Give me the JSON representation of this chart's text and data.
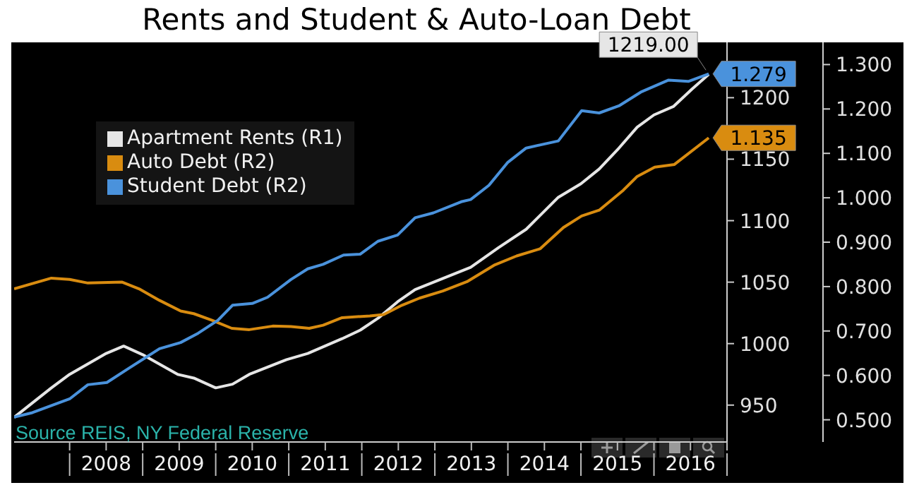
{
  "chart_data": {
    "type": "line",
    "title": "Rents and Student & Auto-Loan Debt",
    "annotations": [
      "Source REIS, NY Federal Reserve"
    ],
    "legend": "top left",
    "grid": false,
    "marker": "none",
    "line_style": "solid",
    "xlim": [
      2007.24,
      2017
    ],
    "xticks": [
      {
        "value": 2008,
        "label": null
      },
      {
        "value": 2008.5,
        "label": "2008"
      },
      {
        "value": 2009,
        "label": null
      },
      {
        "value": 2009.5,
        "label": "2009"
      },
      {
        "value": 2010,
        "label": null
      },
      {
        "value": 2010.5,
        "label": "2010"
      },
      {
        "value": 2011,
        "label": null
      },
      {
        "value": 2011.5,
        "label": "2011"
      },
      {
        "value": 2012,
        "label": null
      },
      {
        "value": 2012.5,
        "label": "2012"
      },
      {
        "value": 2013,
        "label": null
      },
      {
        "value": 2013.5,
        "label": "2013"
      },
      {
        "value": 2014,
        "label": null
      },
      {
        "value": 2014.5,
        "label": "2014"
      },
      {
        "value": 2015,
        "label": null
      },
      {
        "value": 2015.5,
        "label": "2015"
      },
      {
        "value": 2016,
        "label": null
      },
      {
        "value": 2016.5,
        "label": "2016"
      },
      {
        "value": 2017,
        "label": null
      }
    ],
    "ylim": [
      920,
      1245
    ],
    "yticks": [
      950,
      1000,
      1050,
      1100,
      1150,
      1200
    ],
    "y2lim": [
      0.45,
      1.35
    ],
    "y2ticks": [
      {
        "value": 0.5,
        "label": "0.500"
      },
      {
        "value": 0.6,
        "label": "0.600"
      },
      {
        "value": 0.7,
        "label": "0.700"
      },
      {
        "value": 0.8,
        "label": "0.800"
      },
      {
        "value": 0.9,
        "label": "0.900"
      },
      {
        "value": 1.0,
        "label": "1.000"
      },
      {
        "value": 1.1,
        "label": "1.100"
      },
      {
        "value": 1.2,
        "label": "1.200"
      },
      {
        "value": 1.3,
        "label": "1.300"
      }
    ],
    "series": [
      {
        "name": "Apartment Rents (R1)",
        "color": "#e6e6e6",
        "axis": "y",
        "x": [
          2007.24,
          2007.75,
          2008.0,
          2008.5,
          2008.74,
          2009.0,
          2009.48,
          2009.7,
          2010.0,
          2010.23,
          2010.46,
          2010.97,
          2011.26,
          2011.73,
          2011.98,
          2012.23,
          2012.49,
          2012.73,
          2013.11,
          2013.49,
          2013.87,
          2014.25,
          2014.69,
          2015.0,
          2015.25,
          2015.52,
          2015.77,
          2016.0,
          2016.27,
          2016.52,
          2016.75
        ],
        "values": [
          940,
          964,
          975,
          992,
          998,
          991,
          975,
          972,
          964,
          967,
          975,
          987,
          992,
          1004,
          1011,
          1021,
          1034,
          1044,
          1053,
          1062,
          1078,
          1093,
          1119,
          1130,
          1142,
          1159,
          1176,
          1186,
          1193,
          1207,
          1219
        ],
        "value_labels": [
          null,
          null,
          null,
          null,
          null,
          null,
          null,
          null,
          null,
          null,
          null,
          null,
          null,
          null,
          null,
          null,
          null,
          null,
          null,
          null,
          null,
          null,
          null,
          null,
          null,
          null,
          null,
          null,
          null,
          null,
          "1219.00"
        ]
      },
      {
        "name": "Auto Debt (R2)",
        "color": "#d98c10",
        "axis": "y2",
        "x": [
          2007.24,
          2007.75,
          2008.0,
          2008.25,
          2008.72,
          2008.95,
          2009.23,
          2009.52,
          2009.7,
          2009.95,
          2010.22,
          2010.46,
          2010.78,
          2011.03,
          2011.28,
          2011.47,
          2011.73,
          2012.11,
          2012.3,
          2012.55,
          2012.79,
          2013.11,
          2013.44,
          2013.81,
          2014.12,
          2014.44,
          2014.76,
          2015.01,
          2015.25,
          2015.58,
          2015.77,
          2016.01,
          2016.28,
          2016.75
        ],
        "values": [
          0.795,
          0.819,
          0.816,
          0.808,
          0.81,
          0.795,
          0.769,
          0.745,
          0.739,
          0.724,
          0.706,
          0.703,
          0.711,
          0.71,
          0.706,
          0.713,
          0.73,
          0.734,
          0.737,
          0.758,
          0.774,
          0.79,
          0.811,
          0.848,
          0.869,
          0.885,
          0.933,
          0.959,
          0.972,
          1.017,
          1.048,
          1.069,
          1.075,
          1.135
        ],
        "value_labels": [
          null,
          null,
          null,
          null,
          null,
          null,
          null,
          null,
          null,
          null,
          null,
          null,
          null,
          null,
          null,
          null,
          null,
          null,
          null,
          null,
          null,
          null,
          null,
          null,
          null,
          null,
          null,
          null,
          null,
          null,
          null,
          null,
          null,
          "1.135"
        ]
      },
      {
        "name": "Student Debt (R2)",
        "color": "#4a92dc",
        "axis": "y2",
        "x": [
          2007.24,
          2007.49,
          2008.0,
          2008.25,
          2008.51,
          2008.81,
          2009.23,
          2009.52,
          2009.76,
          2010.03,
          2010.23,
          2010.5,
          2010.71,
          2011.03,
          2011.26,
          2011.47,
          2011.75,
          2011.98,
          2012.22,
          2012.49,
          2012.73,
          2012.98,
          2013.36,
          2013.49,
          2013.74,
          2014.0,
          2014.25,
          2014.69,
          2015.01,
          2015.25,
          2015.52,
          2015.82,
          2016.2,
          2016.47,
          2016.75
        ],
        "values": [
          0.506,
          0.516,
          0.547,
          0.579,
          0.584,
          0.616,
          0.66,
          0.674,
          0.695,
          0.724,
          0.758,
          0.762,
          0.776,
          0.816,
          0.84,
          0.85,
          0.871,
          0.873,
          0.902,
          0.916,
          0.955,
          0.966,
          0.991,
          0.996,
          1.028,
          1.08,
          1.112,
          1.128,
          1.196,
          1.191,
          1.207,
          1.238,
          1.265,
          1.262,
          1.279
        ],
        "value_labels": [
          null,
          null,
          null,
          null,
          null,
          null,
          null,
          null,
          null,
          null,
          null,
          null,
          null,
          null,
          null,
          null,
          null,
          null,
          null,
          null,
          null,
          null,
          null,
          null,
          null,
          null,
          null,
          null,
          null,
          null,
          null,
          null,
          null,
          null,
          "1.279"
        ]
      }
    ]
  }
}
